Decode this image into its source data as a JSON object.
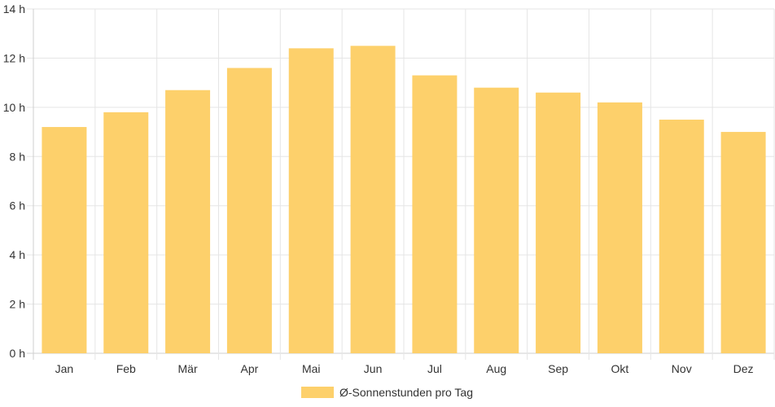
{
  "chart_data": {
    "type": "bar",
    "categories": [
      "Jan",
      "Feb",
      "Mär",
      "Apr",
      "Mai",
      "Jun",
      "Jul",
      "Aug",
      "Sep",
      "Okt",
      "Nov",
      "Dez"
    ],
    "series": [
      {
        "name": "Ø-Sonnenstunden pro Tag",
        "values": [
          9.2,
          9.8,
          10.7,
          11.6,
          12.4,
          12.5,
          11.3,
          10.8,
          10.6,
          10.2,
          9.5,
          9.0
        ],
        "color": "#fdd06b"
      }
    ],
    "y_ticks": [
      "0 h",
      "2 h",
      "4 h",
      "6 h",
      "8 h",
      "10 h",
      "12 h",
      "14 h"
    ],
    "ylim": [
      0,
      14
    ],
    "grid": true,
    "legend_position": "bottom"
  }
}
